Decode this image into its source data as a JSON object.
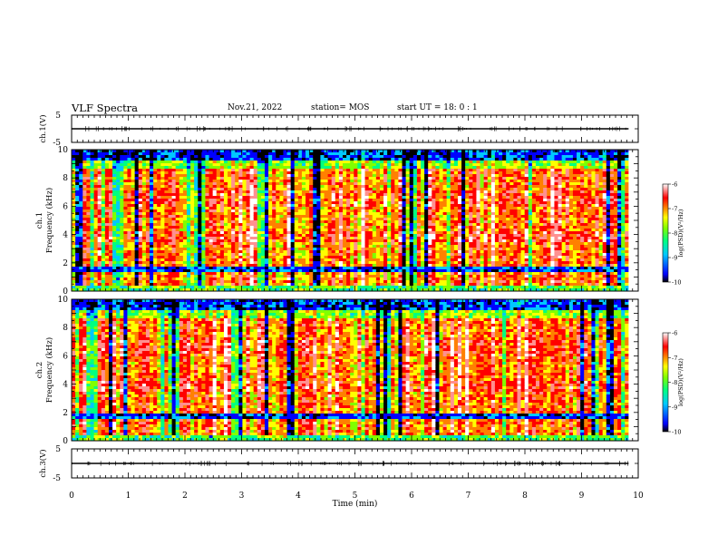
{
  "header": {
    "title": "VLF Spectra",
    "date": "Nov.21, 2022",
    "station": "station= MOS",
    "start_ut": "start UT = 18: 0 : 1"
  },
  "chart_data": [
    {
      "type": "line",
      "panel": "ch1-waveform",
      "ylabel": "ch.1(V)",
      "ylim": [
        -5,
        5
      ],
      "yticks": [
        "5",
        "-5"
      ],
      "xlim": [
        0,
        10
      ],
      "series": [
        {
          "x": [
            0,
            9.83
          ],
          "y": [
            0,
            0
          ]
        }
      ]
    },
    {
      "type": "heatmap",
      "panel": "ch1-spectrogram",
      "ylabel": "ch.1 Frequency (kHz)",
      "ylim": [
        0,
        10
      ],
      "yticks": [
        "0",
        "2",
        "4",
        "6",
        "8",
        "10"
      ],
      "xlim": [
        0,
        10
      ],
      "data_xmax": 9.83,
      "colorbar": {
        "label": "log(PSD)(V²/Hz)",
        "range": [
          -10,
          -6
        ],
        "ticks": [
          "-6",
          "-7",
          "-8",
          "-9",
          "-10"
        ],
        "colors": [
          "#000000",
          "#0000ff",
          "#00c8ff",
          "#00ff80",
          "#80ff00",
          "#ffff00",
          "#ff8000",
          "#ff0000",
          "#ff9090",
          "#ffffff"
        ]
      },
      "noise_band_khz": [
        1.4,
        1.8
      ]
    },
    {
      "type": "heatmap",
      "panel": "ch2-spectrogram",
      "ylabel": "ch.2 Frequency (kHz)",
      "ylim": [
        0,
        10
      ],
      "yticks": [
        "0",
        "2",
        "4",
        "6",
        "8",
        "10"
      ],
      "xlim": [
        0,
        10
      ],
      "data_xmax": 9.83,
      "colorbar": {
        "label": "log(PSD)(V²/Hz)",
        "range": [
          -10,
          -6
        ],
        "ticks": [
          "-6",
          "-7",
          "-8",
          "-9",
          "-10"
        ],
        "colors": [
          "#000000",
          "#0000ff",
          "#00c8ff",
          "#00ff80",
          "#80ff00",
          "#ffff00",
          "#ff8000",
          "#ff0000",
          "#ff9090",
          "#ffffff"
        ]
      },
      "noise_band_khz": [
        1.5,
        1.9
      ]
    },
    {
      "type": "line",
      "panel": "ch3-waveform",
      "ylabel": "ch.3(V)",
      "ylim": [
        -5,
        5
      ],
      "yticks": [
        "5",
        "-5"
      ],
      "xlim": [
        0,
        10
      ],
      "xlabel": "Time (min)",
      "xticks": [
        "0",
        "1",
        "2",
        "3",
        "4",
        "5",
        "6",
        "7",
        "8",
        "9",
        "10"
      ],
      "series": [
        {
          "x": [
            0,
            9.83
          ],
          "y": [
            0,
            0
          ]
        }
      ]
    }
  ]
}
